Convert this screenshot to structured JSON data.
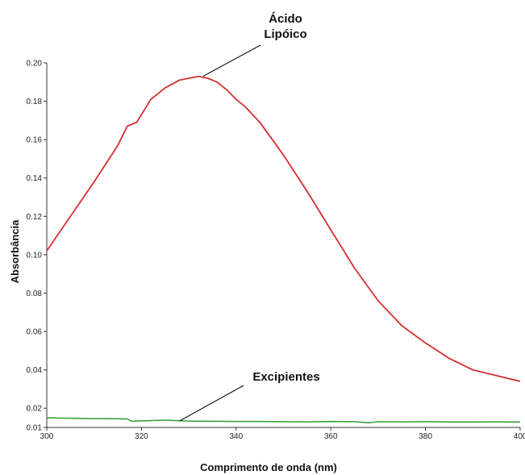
{
  "chart_data": {
    "type": "line",
    "title": "",
    "xlabel": "Comprimento de onda (nm)",
    "ylabel": "Absorbância",
    "xlim": [
      300,
      400
    ],
    "ylim": [
      0.01,
      0.2
    ],
    "grid": false,
    "x_ticks": [
      "300",
      "320",
      "340",
      "360",
      "380",
      "400"
    ],
    "y_ticks": [
      "0.01",
      "0.02",
      "0.04",
      "0.06",
      "0.08",
      "0.10",
      "0.12",
      "0.14",
      "0.16",
      "0.18",
      "0.20"
    ],
    "series": [
      {
        "name": "Ácido Lipóico",
        "color": "#d62f2f",
        "x": [
          300,
          305,
          310,
          315,
          317,
          319,
          320,
          322,
          325,
          328,
          330,
          332,
          334,
          336,
          338,
          340,
          342,
          345,
          350,
          355,
          360,
          365,
          370,
          375,
          380,
          385,
          390,
          395,
          400
        ],
        "y": [
          0.102,
          0.12,
          0.138,
          0.157,
          0.167,
          0.169,
          0.173,
          0.181,
          0.187,
          0.191,
          0.192,
          0.193,
          0.192,
          0.19,
          0.186,
          0.181,
          0.177,
          0.169,
          0.152,
          0.133,
          0.113,
          0.093,
          0.076,
          0.063,
          0.054,
          0.046,
          0.04,
          0.037,
          0.034
        ]
      },
      {
        "name": "Excipientes",
        "color": "#2e9e2e",
        "x": [
          300,
          305,
          310,
          315,
          317,
          318,
          320,
          325,
          330,
          335,
          340,
          345,
          350,
          355,
          360,
          365,
          368,
          370,
          375,
          380,
          385,
          390,
          395,
          400
        ],
        "y": [
          0.015,
          0.0148,
          0.0146,
          0.0145,
          0.0144,
          0.0132,
          0.0134,
          0.0138,
          0.0133,
          0.0132,
          0.0131,
          0.0131,
          0.013,
          0.0129,
          0.0131,
          0.013,
          0.0124,
          0.013,
          0.0129,
          0.013,
          0.0128,
          0.0128,
          0.0129,
          0.0128
        ]
      }
    ],
    "annotations": [
      {
        "lines": [
          "Ácido",
          "Lipóico"
        ],
        "series": "Ácido Lipóico",
        "x": 333,
        "y": 0.193
      },
      {
        "lines": [
          "Excipientes"
        ],
        "series": "Excipientes",
        "x": 328,
        "y": 0.0133
      }
    ]
  }
}
